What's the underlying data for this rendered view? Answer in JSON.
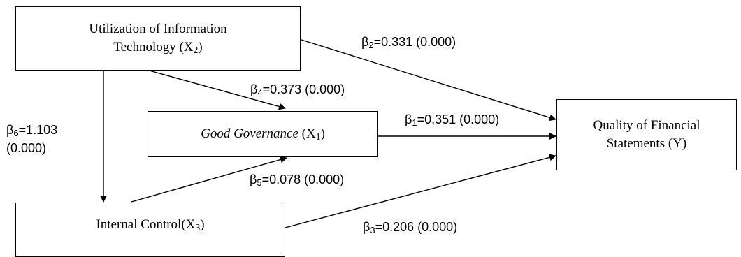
{
  "nodes": {
    "x2": {
      "line1": "Utilization of Information",
      "line2": "Technology  (X",
      "sub": "2",
      "tail": ")"
    },
    "x1": {
      "name": "Good Governance",
      "var": " (X",
      "sub": "1",
      "tail": ")"
    },
    "x3": {
      "name": "Internal Control(X",
      "sub": "3",
      "tail": ")"
    },
    "y": {
      "line1": "Quality of Financial",
      "line2": "Statements (Y)"
    }
  },
  "coefficients": {
    "b1": {
      "symbol": "β",
      "sub": "1",
      "value": "=0.351  (0.000)"
    },
    "b2": {
      "symbol": "β",
      "sub": "2",
      "value": "=0.331  (0.000)"
    },
    "b3": {
      "symbol": "β",
      "sub": "3",
      "value": "=0.206 (0.000)"
    },
    "b4": {
      "symbol": "β",
      "sub": "4",
      "value": "=0.373 (0.000)"
    },
    "b5": {
      "symbol": "β",
      "sub": "5",
      "value": "=0.078 (0.000)"
    },
    "b6": {
      "symbol": "β",
      "sub": "6",
      "value": "=1.103",
      "value2": "(0.000)"
    }
  },
  "colors": {
    "line": "#000000",
    "box_border": "#000000",
    "text": "#000000"
  }
}
